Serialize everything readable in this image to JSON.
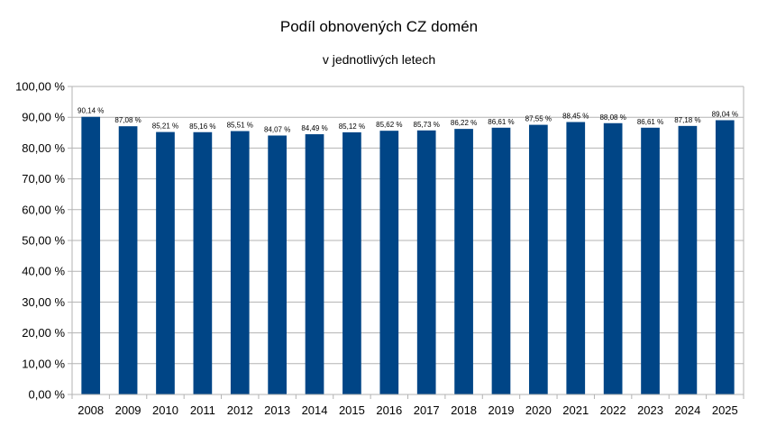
{
  "chart_data": {
    "type": "bar",
    "title": "Podíl obnovených CZ domén",
    "subtitle": "v jednotlivých letech",
    "xlabel": "",
    "ylabel": "",
    "categories": [
      "2008",
      "2009",
      "2010",
      "2011",
      "2012",
      "2013",
      "2014",
      "2015",
      "2016",
      "2017",
      "2018",
      "2019",
      "2020",
      "2021",
      "2022",
      "2023",
      "2024",
      "2025"
    ],
    "values": [
      90.14,
      87.08,
      85.21,
      85.16,
      85.51,
      84.07,
      84.49,
      85.12,
      85.62,
      85.73,
      86.22,
      86.61,
      87.55,
      88.45,
      88.08,
      86.61,
      87.18,
      89.04
    ],
    "value_labels": [
      "90,14 %",
      "87,08 %",
      "85,21 %",
      "85,16 %",
      "85,51 %",
      "84,07 %",
      "84,49 %",
      "85,12 %",
      "85,62 %",
      "85,73 %",
      "86,22 %",
      "86,61 %",
      "87,55 %",
      "88,45 %",
      "88,08 %",
      "86,61 %",
      "87,18 %",
      "89,04 %"
    ],
    "ylim": [
      0,
      100
    ],
    "y_ticks": [
      0,
      10,
      20,
      30,
      40,
      50,
      60,
      70,
      80,
      90,
      100
    ],
    "y_tick_labels": [
      "0,00 %",
      "10,00 %",
      "20,00 %",
      "30,00 %",
      "40,00 %",
      "50,00 %",
      "60,00 %",
      "70,00 %",
      "80,00 %",
      "90,00 %",
      "100,00 %"
    ],
    "grid": true,
    "legend": "none",
    "colors": {
      "bar": "#004586",
      "grid": "#b3b3b3",
      "axis": "#b3b3b3"
    }
  }
}
